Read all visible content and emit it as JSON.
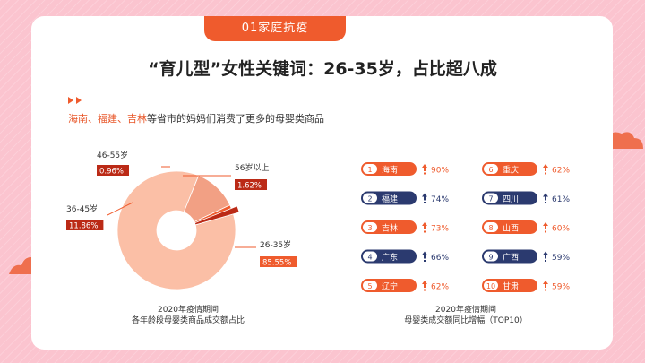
{
  "colors": {
    "orange": "#ef5b2d",
    "navy": "#2b3a6f",
    "peach": "#fbbfa6",
    "salmon": "#f2a084",
    "dark_red": "#bb2a16"
  },
  "tab_label": "01家庭抗疫",
  "headline": "“育儿型”女性关键词：26-35岁，占比超八成",
  "subtitle": {
    "highlight": "海南、福建、吉林",
    "rest": "等省市的妈妈们消费了更多的母婴类商品"
  },
  "pie_caption": {
    "line1": "2020年疫情期间",
    "line2": "各年龄段母婴类商品成交额占比"
  },
  "ranking_caption": {
    "line1": "2020年疫情期间",
    "line2": "母婴类成交额同比增幅（TOP10）"
  },
  "chart_data": [
    {
      "type": "pie",
      "donut": true,
      "slices": [
        {
          "label": "26-35岁",
          "value": 85.55,
          "value_label": "85.55%",
          "color": "#fbbfa6"
        },
        {
          "label": "36-45岁",
          "value": 11.86,
          "value_label": "11.86%",
          "color": "#f2a084"
        },
        {
          "label": "46-55岁",
          "value": 0.96,
          "value_label": "0.96%",
          "color": "#ef5b2d"
        },
        {
          "label": "56岁以上",
          "value": 1.62,
          "value_label": "1.62%",
          "color": "#bb2a16"
        }
      ]
    },
    {
      "type": "table",
      "columns": [
        "rank",
        "province",
        "yoy_growth"
      ],
      "rows": [
        {
          "rank": "1",
          "province": "海南",
          "value": 90,
          "value_label": "90%",
          "color": "#ef5b2d"
        },
        {
          "rank": "2",
          "province": "福建",
          "value": 74,
          "value_label": "74%",
          "color": "#2b3a6f"
        },
        {
          "rank": "3",
          "province": "吉林",
          "value": 73,
          "value_label": "73%",
          "color": "#ef5b2d"
        },
        {
          "rank": "4",
          "province": "广东",
          "value": 66,
          "value_label": "66%",
          "color": "#2b3a6f"
        },
        {
          "rank": "5",
          "province": "辽宁",
          "value": 62,
          "value_label": "62%",
          "color": "#ef5b2d"
        },
        {
          "rank": "6",
          "province": "重庆",
          "value": 62,
          "value_label": "62%",
          "color": "#ef5b2d"
        },
        {
          "rank": "7",
          "province": "四川",
          "value": 61,
          "value_label": "61%",
          "color": "#2b3a6f"
        },
        {
          "rank": "8",
          "province": "山西",
          "value": 60,
          "value_label": "60%",
          "color": "#ef5b2d"
        },
        {
          "rank": "9",
          "province": "广西",
          "value": 59,
          "value_label": "59%",
          "color": "#2b3a6f"
        },
        {
          "rank": "10",
          "province": "甘肃",
          "value": 59,
          "value_label": "59%",
          "color": "#ef5b2d"
        }
      ]
    }
  ]
}
